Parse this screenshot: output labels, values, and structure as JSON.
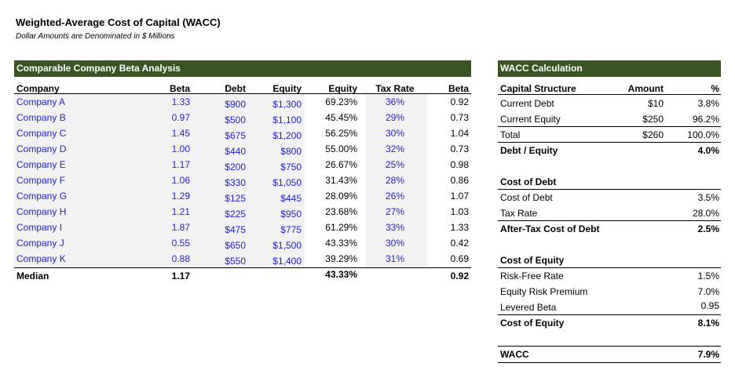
{
  "title": "Weighted-Average Cost of Capital (WACC)",
  "subtitle": "Dollar Amounts are Denominated in $ Millions",
  "beta_table": {
    "section_title": "Comparable Company Beta Analysis",
    "headers": {
      "company": "Company",
      "beta": "Beta",
      "debt": "Debt",
      "equity": "Equity",
      "equity_pct": "Equity",
      "tax_rate": "Tax Rate",
      "unlevered_beta": "Beta"
    },
    "rows": [
      {
        "company": "Company A",
        "beta": "1.33",
        "debt": "$900",
        "equity": "$1,300",
        "equity_pct": "69.23%",
        "tax_rate": "36%",
        "unlevered_beta": "0.92"
      },
      {
        "company": "Company B",
        "beta": "0.97",
        "debt": "$500",
        "equity": "$1,100",
        "equity_pct": "45.45%",
        "tax_rate": "29%",
        "unlevered_beta": "0.73"
      },
      {
        "company": "Company C",
        "beta": "1.45",
        "debt": "$675",
        "equity": "$1,200",
        "equity_pct": "56.25%",
        "tax_rate": "30%",
        "unlevered_beta": "1.04"
      },
      {
        "company": "Company D",
        "beta": "1.00",
        "debt": "$440",
        "equity": "$800",
        "equity_pct": "55.00%",
        "tax_rate": "32%",
        "unlevered_beta": "0.73"
      },
      {
        "company": "Company E",
        "beta": "1.17",
        "debt": "$200",
        "equity": "$750",
        "equity_pct": "26.67%",
        "tax_rate": "25%",
        "unlevered_beta": "0.98"
      },
      {
        "company": "Company F",
        "beta": "1.06",
        "debt": "$330",
        "equity": "$1,050",
        "equity_pct": "31.43%",
        "tax_rate": "28%",
        "unlevered_beta": "0.86"
      },
      {
        "company": "Company G",
        "beta": "1.29",
        "debt": "$125",
        "equity": "$445",
        "equity_pct": "28.09%",
        "tax_rate": "26%",
        "unlevered_beta": "1.07"
      },
      {
        "company": "Company H",
        "beta": "1.21",
        "debt": "$225",
        "equity": "$950",
        "equity_pct": "23.68%",
        "tax_rate": "27%",
        "unlevered_beta": "1.03"
      },
      {
        "company": "Company I",
        "beta": "1.87",
        "debt": "$475",
        "equity": "$775",
        "equity_pct": "61.29%",
        "tax_rate": "33%",
        "unlevered_beta": "1.33"
      },
      {
        "company": "Company J",
        "beta": "0.55",
        "debt": "$650",
        "equity": "$1,500",
        "equity_pct": "43.33%",
        "tax_rate": "30%",
        "unlevered_beta": "0.42"
      },
      {
        "company": "Company K",
        "beta": "0.88",
        "debt": "$550",
        "equity": "$1,400",
        "equity_pct": "39.29%",
        "tax_rate": "31%",
        "unlevered_beta": "0.69"
      }
    ],
    "median": {
      "label": "Median",
      "beta": "1.17",
      "equity_pct": "43.33%",
      "unlevered_beta": "0.92"
    }
  },
  "wacc": {
    "section_title": "WACC Calculation",
    "capital_structure": {
      "header": "Capital Structure",
      "amount_header": "Amount",
      "pct_header": "%",
      "rows": [
        {
          "label": "Current Debt",
          "amount": "$10",
          "pct": "3.8%"
        },
        {
          "label": "Current Equity",
          "amount": "$250",
          "pct": "96.2%"
        },
        {
          "label": "Total",
          "amount": "$260",
          "pct": "100.0%"
        }
      ],
      "debt_equity_label": "Debt / Equity",
      "debt_equity_value": "4.0%"
    },
    "cost_of_debt": {
      "header": "Cost of Debt",
      "rows": [
        {
          "label": "Cost of Debt",
          "value": "3.5%"
        },
        {
          "label": "Tax Rate",
          "value": "28.0%"
        }
      ],
      "result_label": "After-Tax Cost of Debt",
      "result_value": "2.5%"
    },
    "cost_of_equity": {
      "header": "Cost of Equity",
      "rows": [
        {
          "label": "Risk-Free Rate",
          "value": "1.5%"
        },
        {
          "label": "Equity Risk Premium",
          "value": "7.0%"
        },
        {
          "label": "Levered Beta",
          "value": "0.95"
        }
      ],
      "result_label": "Cost of Equity",
      "result_value": "8.1%"
    },
    "total_label": "WACC",
    "total_value": "7.9%"
  }
}
